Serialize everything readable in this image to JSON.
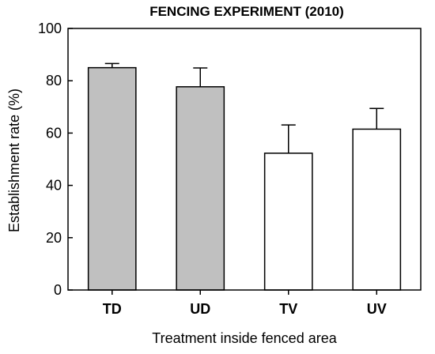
{
  "chart_data": {
    "type": "bar",
    "title": "FENCING EXPERIMENT (2010)",
    "xlabel": "Treatment inside fenced area",
    "ylabel": "Establishment rate (%)",
    "ylim": [
      0,
      100
    ],
    "yticks": [
      "0",
      "20",
      "40",
      "60",
      "80",
      "100"
    ],
    "categories": [
      "TD",
      "UD",
      "TV",
      "UV"
    ],
    "values": [
      85,
      77.7,
      52.3,
      61.5
    ],
    "error_upper": [
      1.6,
      7.2,
      10.8,
      7.9
    ],
    "bar_colors": [
      "#c0c0c0",
      "#c0c0c0",
      "#ffffff",
      "#ffffff"
    ],
    "grid": false,
    "legend": "none"
  }
}
